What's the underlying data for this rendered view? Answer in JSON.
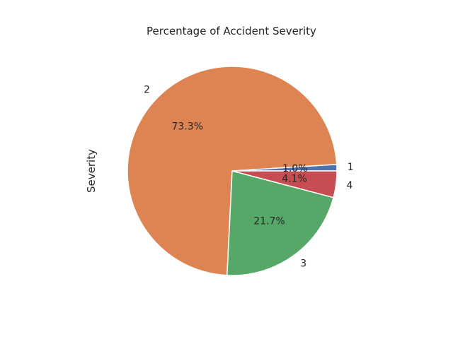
{
  "chart_data": {
    "type": "pie",
    "title": "Percentage of Accident Severity",
    "ylabel": "Severity",
    "slices": [
      {
        "label": "1",
        "value": 1.0,
        "pct_label": "1.0%",
        "color": "#4c72b0"
      },
      {
        "label": "2",
        "value": 73.3,
        "pct_label": "73.3%",
        "color": "#dd8452"
      },
      {
        "label": "3",
        "value": 21.7,
        "pct_label": "21.7%",
        "color": "#55a868"
      },
      {
        "label": "4",
        "value": 4.1,
        "pct_label": "4.1%",
        "color": "#c44e52"
      }
    ],
    "start_angle_deg": 0,
    "direction": "counterclockwise",
    "edge_color": "#ffffff"
  }
}
